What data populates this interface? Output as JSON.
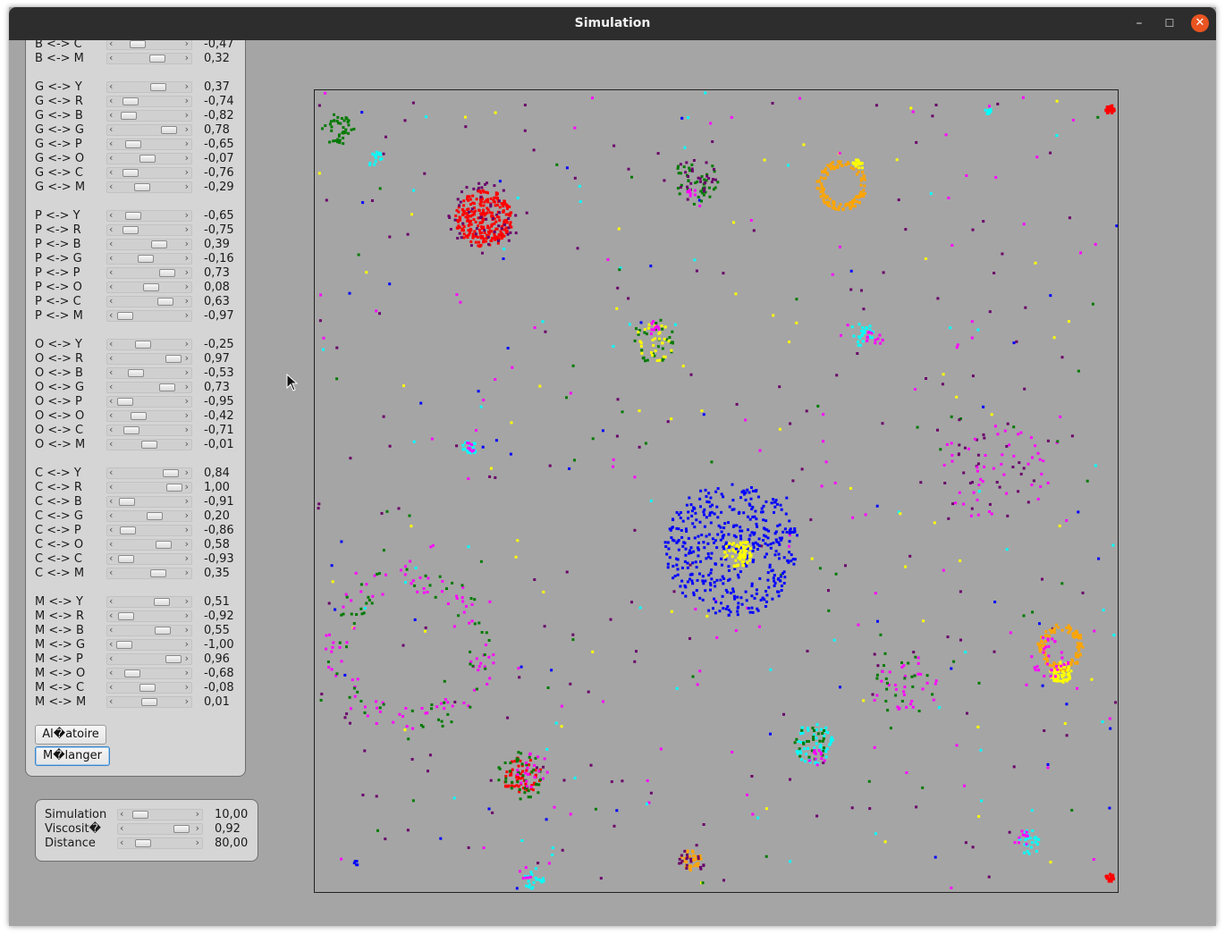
{
  "window": {
    "title": "Simulation",
    "minimize_glyph": "–",
    "maximize_glyph": "☐",
    "close_glyph": "✕"
  },
  "matrix": [
    {
      "label": "B <-> C",
      "value": "-0,47",
      "level": -0.47
    },
    {
      "label": "B <-> M",
      "value": "0,32",
      "level": 0.32
    },
    {
      "label": "G <-> Y",
      "value": "0,37",
      "level": 0.37
    },
    {
      "label": "G <-> R",
      "value": "-0,74",
      "level": -0.74
    },
    {
      "label": "G <-> B",
      "value": "-0,82",
      "level": -0.82
    },
    {
      "label": "G <-> G",
      "value": "0,78",
      "level": 0.78
    },
    {
      "label": "G <-> P",
      "value": "-0,65",
      "level": -0.65
    },
    {
      "label": "G <-> O",
      "value": "-0,07",
      "level": -0.07
    },
    {
      "label": "G <-> C",
      "value": "-0,76",
      "level": -0.76
    },
    {
      "label": "G <-> M",
      "value": "-0,29",
      "level": -0.29
    },
    {
      "label": "P <-> Y",
      "value": "-0,65",
      "level": -0.65
    },
    {
      "label": "P <-> R",
      "value": "-0,75",
      "level": -0.75
    },
    {
      "label": "P <-> B",
      "value": "0,39",
      "level": 0.39
    },
    {
      "label": "P <-> G",
      "value": "-0,16",
      "level": -0.16
    },
    {
      "label": "P <-> P",
      "value": "0,73",
      "level": 0.73
    },
    {
      "label": "P <-> O",
      "value": "0,08",
      "level": 0.08
    },
    {
      "label": "P <-> C",
      "value": "0,63",
      "level": 0.63
    },
    {
      "label": "P <-> M",
      "value": "-0,97",
      "level": -0.97
    },
    {
      "label": "O <-> Y",
      "value": "-0,25",
      "level": -0.25
    },
    {
      "label": "O <-> R",
      "value": "0,97",
      "level": 0.97
    },
    {
      "label": "O <-> B",
      "value": "-0,53",
      "level": -0.53
    },
    {
      "label": "O <-> G",
      "value": "0,73",
      "level": 0.73
    },
    {
      "label": "O <-> P",
      "value": "-0,95",
      "level": -0.95
    },
    {
      "label": "O <-> O",
      "value": "-0,42",
      "level": -0.42
    },
    {
      "label": "O <-> C",
      "value": "-0,71",
      "level": -0.71
    },
    {
      "label": "O <-> M",
      "value": "-0,01",
      "level": -0.01
    },
    {
      "label": "C <-> Y",
      "value": "0,84",
      "level": 0.84
    },
    {
      "label": "C <-> R",
      "value": "1,00",
      "level": 1.0
    },
    {
      "label": "C <-> B",
      "value": "-0,91",
      "level": -0.91
    },
    {
      "label": "C <-> G",
      "value": "0,20",
      "level": 0.2
    },
    {
      "label": "C <-> P",
      "value": "-0,86",
      "level": -0.86
    },
    {
      "label": "C <-> O",
      "value": "0,58",
      "level": 0.58
    },
    {
      "label": "C <-> C",
      "value": "-0,93",
      "level": -0.93
    },
    {
      "label": "C <-> M",
      "value": "0,35",
      "level": 0.35
    },
    {
      "label": "M <-> Y",
      "value": "0,51",
      "level": 0.51
    },
    {
      "label": "M <-> R",
      "value": "-0,92",
      "level": -0.92
    },
    {
      "label": "M <-> B",
      "value": "0,55",
      "level": 0.55
    },
    {
      "label": "M <-> G",
      "value": "-1,00",
      "level": -1.0
    },
    {
      "label": "M <-> P",
      "value": "0,96",
      "level": 0.96
    },
    {
      "label": "M <-> O",
      "value": "-0,68",
      "level": -0.68
    },
    {
      "label": "M <-> C",
      "value": "-0,08",
      "level": -0.08
    },
    {
      "label": "M <-> M",
      "value": "0,01",
      "level": 0.01
    }
  ],
  "buttons": {
    "random_label": "Al�atoire",
    "shuffle_label": "M�langer"
  },
  "params": [
    {
      "label": "Simulation",
      "value": "10,00",
      "fraction": 0.1
    },
    {
      "label": "Viscosit�",
      "value": "0,92",
      "fraction": 0.92
    },
    {
      "label": "Distance",
      "value": "80,00",
      "fraction": 0.16
    }
  ],
  "particle_colors": {
    "yellow": "#ffff00",
    "red": "#ff0000",
    "blue": "#0000ff",
    "green": "#007a00",
    "purple": "#6a006a",
    "orange": "#ffa500",
    "cyan": "#00ffff",
    "magenta": "#ff00ff"
  },
  "background_color": "#a5a5a5"
}
